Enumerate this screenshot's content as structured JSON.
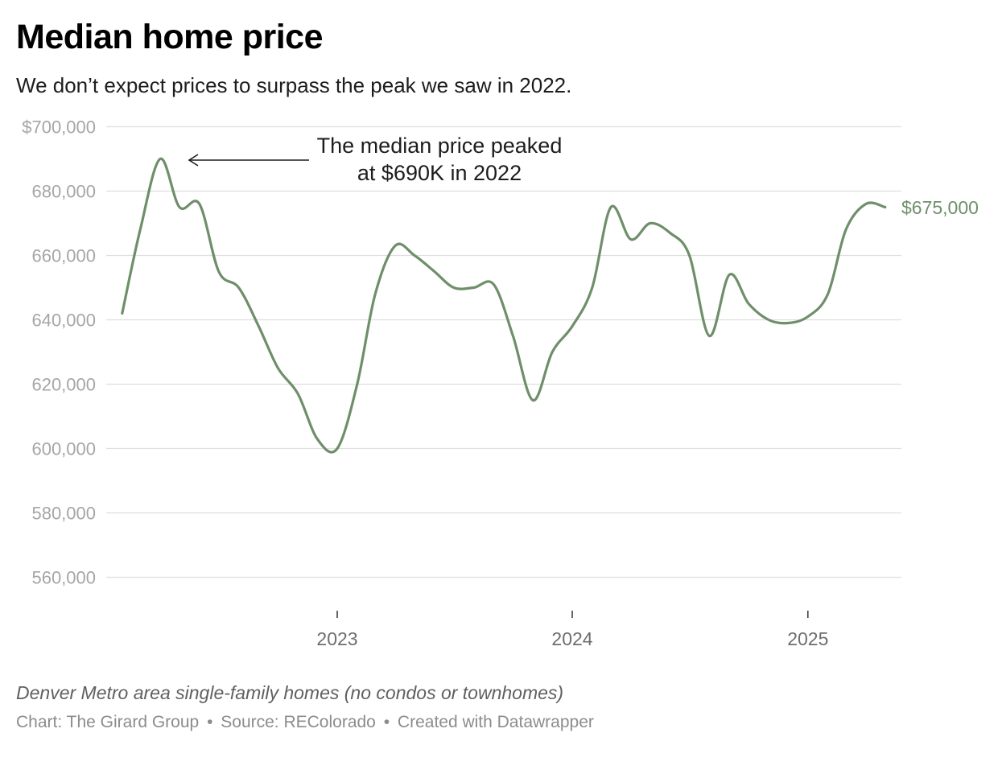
{
  "title": "Median home price",
  "subtitle": "We don’t expect prices to surpass the peak we saw in 2022.",
  "notes": "Denver Metro area single-family homes (no condos or townhomes)",
  "footer": {
    "chart_credit": "Chart: The Girard Group",
    "separator": "•",
    "source": "Source: REColorado",
    "created_with": "Created with Datawrapper"
  },
  "colors": {
    "line": "#6f8f6a",
    "grid": "#dedede",
    "axis_tick": "#333333"
  },
  "chart_data": {
    "type": "line",
    "title": "Median home price",
    "subtitle": "We don’t expect prices to surpass the peak we saw in 2022.",
    "xlabel": "",
    "ylabel": "",
    "ylim": [
      550000,
      700000
    ],
    "y_ticks": [
      560000,
      580000,
      600000,
      620000,
      640000,
      660000,
      680000,
      700000
    ],
    "y_tick_labels": [
      "560,000",
      "580,000",
      "600,000",
      "620,000",
      "640,000",
      "660,000",
      "680,000",
      "$700,000"
    ],
    "x_ticks": [
      "2023-01-01",
      "2024-01-01",
      "2025-01-01"
    ],
    "x_tick_labels": [
      "2023",
      "2024",
      "2025"
    ],
    "xlim": [
      "2022-01-20",
      "2025-05-31"
    ],
    "grid": true,
    "series": [
      {
        "x": [
          "2022-02-01",
          "2022-03-01",
          "2022-04-01",
          "2022-05-01",
          "2022-06-01",
          "2022-07-01",
          "2022-08-01",
          "2022-09-01",
          "2022-10-01",
          "2022-11-01",
          "2022-12-01",
          "2023-01-01",
          "2023-02-01",
          "2023-03-01",
          "2023-04-01",
          "2023-05-01",
          "2023-06-01",
          "2023-07-01",
          "2023-08-01",
          "2023-09-01",
          "2023-10-01",
          "2023-11-01",
          "2023-12-01",
          "2024-01-01",
          "2024-02-01",
          "2024-03-01",
          "2024-04-01",
          "2024-05-01",
          "2024-06-01",
          "2024-07-01",
          "2024-08-01",
          "2024-09-01",
          "2024-10-01",
          "2024-11-01",
          "2024-12-01",
          "2025-01-01",
          "2025-02-01",
          "2025-03-01",
          "2025-04-01",
          "2025-05-01"
        ],
        "values": [
          642000,
          668000,
          690000,
          675000,
          676000,
          655000,
          650000,
          638000,
          625000,
          617000,
          603000,
          600000,
          620000,
          648000,
          663000,
          660000,
          655000,
          650000,
          650000,
          651000,
          635000,
          615000,
          630000,
          638000,
          650000,
          675000,
          665000,
          670000,
          667000,
          660000,
          635000,
          654000,
          645000,
          640000,
          639000,
          641000,
          648000,
          668000,
          676000,
          675000
        ]
      }
    ],
    "annotations": [
      {
        "lines": [
          "The median price peaked",
          "at $690K in 2022"
        ],
        "arrow_target": {
          "x": "2022-04-10",
          "y": 690000
        }
      }
    ],
    "end_label": "$675,000"
  }
}
